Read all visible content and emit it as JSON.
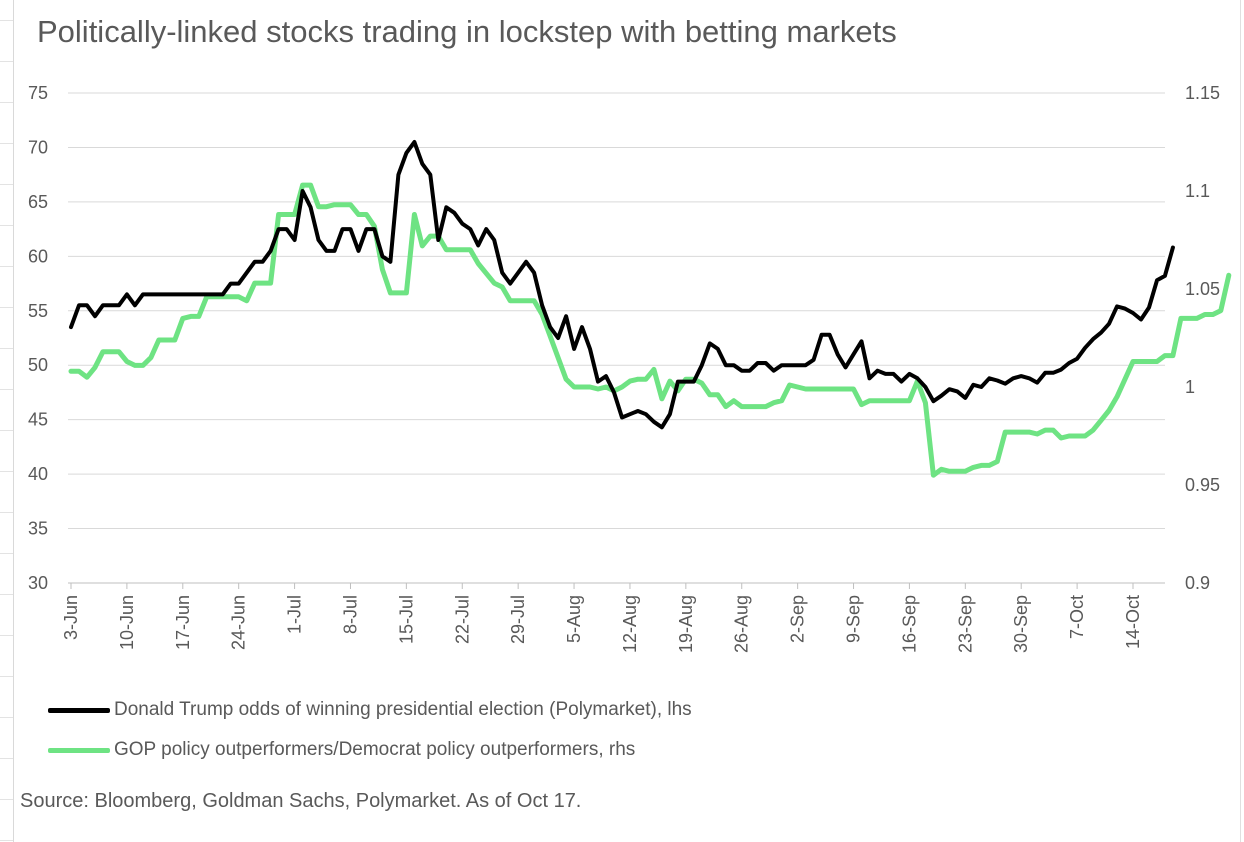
{
  "title": "Politically-linked stocks trading in lockstep with betting markets",
  "source": "Source: Bloomberg, Goldman Sachs, Polymarket. As of Oct 17.",
  "colors": {
    "trump": "#000000",
    "gop": "#6ee383",
    "grid": "#d9d9d9",
    "text": "#595959"
  },
  "chart_data": {
    "type": "line",
    "title": "Politically-linked stocks trading in lockstep with betting markets",
    "x_start_date": "2024-06-03",
    "x_end_date": "2024-10-17",
    "x_tick_labels": [
      "3-Jun",
      "10-Jun",
      "17-Jun",
      "24-Jun",
      "1-Jul",
      "8-Jul",
      "15-Jul",
      "22-Jul",
      "29-Jul",
      "5-Aug",
      "12-Aug",
      "19-Aug",
      "26-Aug",
      "2-Sep",
      "9-Sep",
      "16-Sep",
      "23-Sep",
      "30-Sep",
      "7-Oct",
      "14-Oct"
    ],
    "y_left": {
      "min": 30,
      "max": 75,
      "step": 5,
      "tick_labels": [
        "30",
        "35",
        "40",
        "45",
        "50",
        "55",
        "60",
        "65",
        "70",
        "75"
      ]
    },
    "y_right": {
      "min": 0.9,
      "max": 1.15,
      "step": 0.05,
      "tick_labels": [
        "0.9",
        "0.95",
        "1",
        "1.05",
        "1.1",
        "1.15"
      ]
    },
    "series": [
      {
        "name": "Donald Trump odds of winning presidential election (Polymarket), lhs",
        "axis": "left",
        "color": "#000000",
        "points": [
          [
            0,
            53.5
          ],
          [
            1,
            55.5
          ],
          [
            2,
            55.5
          ],
          [
            3,
            54.5
          ],
          [
            4,
            55.5
          ],
          [
            5,
            55.5
          ],
          [
            6,
            55.5
          ],
          [
            7,
            56.5
          ],
          [
            8,
            55.5
          ],
          [
            9,
            56.5
          ],
          [
            10,
            56.5
          ],
          [
            11,
            56.5
          ],
          [
            12,
            56.5
          ],
          [
            13,
            56.5
          ],
          [
            14,
            56.5
          ],
          [
            15,
            56.5
          ],
          [
            16,
            56.5
          ],
          [
            17,
            56.5
          ],
          [
            18,
            56.5
          ],
          [
            19,
            56.5
          ],
          [
            20,
            57.5
          ],
          [
            21,
            57.5
          ],
          [
            22,
            58.5
          ],
          [
            23,
            59.5
          ],
          [
            24,
            59.5
          ],
          [
            25,
            60.5
          ],
          [
            26,
            62.5
          ],
          [
            27,
            62.5
          ],
          [
            28,
            61.5
          ],
          [
            29,
            66
          ],
          [
            30,
            64.5
          ],
          [
            31,
            61.5
          ],
          [
            32,
            60.5
          ],
          [
            33,
            60.5
          ],
          [
            34,
            62.5
          ],
          [
            35,
            62.5
          ],
          [
            36,
            60.5
          ],
          [
            37,
            62.5
          ],
          [
            38,
            62.5
          ],
          [
            39,
            60
          ],
          [
            40,
            59.5
          ],
          [
            41,
            67.5
          ],
          [
            42,
            69.5
          ],
          [
            43,
            70.5
          ],
          [
            44,
            68.5
          ],
          [
            45,
            67.5
          ],
          [
            46,
            61.5
          ],
          [
            47,
            64.5
          ],
          [
            48,
            64
          ],
          [
            49,
            63
          ],
          [
            50,
            62.5
          ],
          [
            51,
            61
          ],
          [
            52,
            62.5
          ],
          [
            53,
            61.5
          ],
          [
            54,
            58.5
          ],
          [
            55,
            57.5
          ],
          [
            56,
            58.5
          ],
          [
            57,
            59.5
          ],
          [
            58,
            58.5
          ],
          [
            59,
            55.5
          ],
          [
            60,
            53.5
          ],
          [
            61,
            52.5
          ],
          [
            62,
            54.5
          ],
          [
            63,
            51.5
          ],
          [
            64,
            53.5
          ],
          [
            65,
            51.5
          ],
          [
            66,
            48.5
          ],
          [
            67,
            49
          ],
          [
            68,
            47.5
          ],
          [
            69,
            45.2
          ],
          [
            70,
            45.5
          ],
          [
            71,
            45.8
          ],
          [
            72,
            45.5
          ],
          [
            73,
            44.8
          ],
          [
            74,
            44.3
          ],
          [
            75,
            45.5
          ],
          [
            76,
            48.5
          ],
          [
            77,
            48.5
          ],
          [
            78,
            48.5
          ],
          [
            79,
            50
          ],
          [
            80,
            52
          ],
          [
            81,
            51.5
          ],
          [
            82,
            50
          ],
          [
            83,
            50
          ],
          [
            84,
            49.5
          ],
          [
            85,
            49.5
          ],
          [
            86,
            50.2
          ],
          [
            87,
            50.2
          ],
          [
            88,
            49.5
          ],
          [
            89,
            50
          ],
          [
            90,
            50
          ],
          [
            91,
            50
          ],
          [
            92,
            50
          ],
          [
            93,
            50.5
          ],
          [
            94,
            52.8
          ],
          [
            95,
            52.8
          ],
          [
            96,
            51
          ],
          [
            97,
            49.8
          ],
          [
            98,
            51
          ],
          [
            99,
            52.2
          ],
          [
            100,
            48.8
          ],
          [
            101,
            49.5
          ],
          [
            102,
            49.2
          ],
          [
            103,
            49.2
          ],
          [
            104,
            48.5
          ],
          [
            105,
            49.2
          ],
          [
            106,
            48.8
          ],
          [
            107,
            48
          ],
          [
            108,
            46.7
          ],
          [
            109,
            47.2
          ],
          [
            110,
            47.8
          ],
          [
            111,
            47.6
          ],
          [
            112,
            47
          ],
          [
            113,
            48.2
          ],
          [
            114,
            48
          ],
          [
            115,
            48.8
          ],
          [
            116,
            48.6
          ],
          [
            117,
            48.3
          ],
          [
            118,
            48.8
          ],
          [
            119,
            49
          ],
          [
            120,
            48.8
          ],
          [
            121,
            48.4
          ],
          [
            122,
            49.3
          ],
          [
            123,
            49.3
          ],
          [
            124,
            49.6
          ],
          [
            125,
            50.2
          ],
          [
            126,
            50.6
          ],
          [
            127,
            51.6
          ],
          [
            128,
            52.4
          ],
          [
            129,
            53
          ],
          [
            130,
            53.8
          ],
          [
            131,
            55.4
          ],
          [
            132,
            55.2
          ],
          [
            133,
            54.8
          ],
          [
            134,
            54.2
          ],
          [
            135,
            55.3
          ],
          [
            136,
            57.8
          ],
          [
            137,
            58.2
          ],
          [
            138,
            60.8
          ]
        ]
      },
      {
        "name": "GOP policy outperformers/Democrat policy outperformers, rhs",
        "axis": "right",
        "color": "#6ee383",
        "points": [
          [
            0,
            1.008
          ],
          [
            1,
            1.008
          ],
          [
            2,
            1.005
          ],
          [
            3,
            1.01
          ],
          [
            4,
            1.018
          ],
          [
            5,
            1.018
          ],
          [
            6,
            1.018
          ],
          [
            7,
            1.013
          ],
          [
            8,
            1.011
          ],
          [
            9,
            1.011
          ],
          [
            10,
            1.015
          ],
          [
            11,
            1.024
          ],
          [
            12,
            1.024
          ],
          [
            13,
            1.024
          ],
          [
            14,
            1.035
          ],
          [
            15,
            1.036
          ],
          [
            16,
            1.036
          ],
          [
            17,
            1.046
          ],
          [
            18,
            1.046
          ],
          [
            19,
            1.046
          ],
          [
            20,
            1.046
          ],
          [
            21,
            1.046
          ],
          [
            22,
            1.044
          ],
          [
            23,
            1.053
          ],
          [
            24,
            1.053
          ],
          [
            25,
            1.053
          ],
          [
            26,
            1.088
          ],
          [
            27,
            1.088
          ],
          [
            28,
            1.088
          ],
          [
            29,
            1.103
          ],
          [
            30,
            1.103
          ],
          [
            31,
            1.092
          ],
          [
            32,
            1.092
          ],
          [
            33,
            1.093
          ],
          [
            34,
            1.093
          ],
          [
            35,
            1.093
          ],
          [
            36,
            1.088
          ],
          [
            37,
            1.088
          ],
          [
            38,
            1.082
          ],
          [
            39,
            1.06
          ],
          [
            40,
            1.048
          ],
          [
            41,
            1.048
          ],
          [
            42,
            1.048
          ],
          [
            43,
            1.088
          ],
          [
            44,
            1.072
          ],
          [
            45,
            1.077
          ],
          [
            46,
            1.077
          ],
          [
            47,
            1.07
          ],
          [
            48,
            1.07
          ],
          [
            49,
            1.07
          ],
          [
            50,
            1.07
          ],
          [
            51,
            1.063
          ],
          [
            52,
            1.058
          ],
          [
            53,
            1.053
          ],
          [
            54,
            1.051
          ],
          [
            55,
            1.044
          ],
          [
            56,
            1.044
          ],
          [
            57,
            1.044
          ],
          [
            58,
            1.044
          ],
          [
            59,
            1.037
          ],
          [
            60,
            1.026
          ],
          [
            61,
            1.015
          ],
          [
            62,
            1.004
          ],
          [
            63,
            1.0
          ],
          [
            64,
            1.0
          ],
          [
            65,
            1.0
          ],
          [
            66,
            0.999
          ],
          [
            67,
            1.0
          ],
          [
            68,
            0.998
          ],
          [
            69,
            1.0
          ],
          [
            70,
            1.003
          ],
          [
            71,
            1.004
          ],
          [
            72,
            1.004
          ],
          [
            73,
            1.009
          ],
          [
            74,
            0.994
          ],
          [
            75,
            1.003
          ],
          [
            76,
            0.998
          ],
          [
            77,
            1.004
          ],
          [
            78,
            1.004
          ],
          [
            79,
            1.002
          ],
          [
            80,
            0.996
          ],
          [
            81,
            0.996
          ],
          [
            82,
            0.99
          ],
          [
            83,
            0.993
          ],
          [
            84,
            0.99
          ],
          [
            85,
            0.99
          ],
          [
            86,
            0.99
          ],
          [
            87,
            0.99
          ],
          [
            88,
            0.992
          ],
          [
            89,
            0.993
          ],
          [
            90,
            1.001
          ],
          [
            91,
            1.0
          ],
          [
            92,
            0.999
          ],
          [
            93,
            0.999
          ],
          [
            94,
            0.999
          ],
          [
            95,
            0.999
          ],
          [
            96,
            0.999
          ],
          [
            97,
            0.999
          ],
          [
            98,
            0.999
          ],
          [
            99,
            0.991
          ],
          [
            100,
            0.993
          ],
          [
            101,
            0.993
          ],
          [
            102,
            0.993
          ],
          [
            103,
            0.993
          ],
          [
            104,
            0.993
          ],
          [
            105,
            0.993
          ],
          [
            106,
            1.003
          ],
          [
            107,
            0.992
          ],
          [
            108,
            0.955
          ],
          [
            109,
            0.958
          ],
          [
            110,
            0.957
          ],
          [
            111,
            0.957
          ],
          [
            112,
            0.957
          ],
          [
            113,
            0.959
          ],
          [
            114,
            0.96
          ],
          [
            115,
            0.96
          ],
          [
            116,
            0.962
          ],
          [
            117,
            0.977
          ],
          [
            118,
            0.977
          ],
          [
            119,
            0.977
          ],
          [
            120,
            0.977
          ],
          [
            121,
            0.976
          ],
          [
            122,
            0.978
          ],
          [
            123,
            0.978
          ],
          [
            124,
            0.974
          ],
          [
            125,
            0.975
          ],
          [
            126,
            0.975
          ],
          [
            127,
            0.975
          ],
          [
            128,
            0.978
          ],
          [
            129,
            0.983
          ],
          [
            130,
            0.988
          ],
          [
            131,
            0.995
          ],
          [
            132,
            1.004
          ],
          [
            133,
            1.013
          ],
          [
            134,
            1.013
          ],
          [
            135,
            1.013
          ],
          [
            136,
            1.013
          ],
          [
            137,
            1.016
          ],
          [
            138,
            1.016
          ],
          [
            139,
            1.035
          ],
          [
            140,
            1.035
          ],
          [
            141,
            1.035
          ],
          [
            142,
            1.037
          ],
          [
            143,
            1.037
          ],
          [
            144,
            1.039
          ],
          [
            145,
            1.057
          ]
        ]
      }
    ],
    "legend": [
      "Donald Trump odds of winning presidential election (Polymarket), lhs",
      "GOP policy outperformers/Democrat policy outperformers, rhs"
    ],
    "legend_position": "bottom",
    "grid": true
  }
}
